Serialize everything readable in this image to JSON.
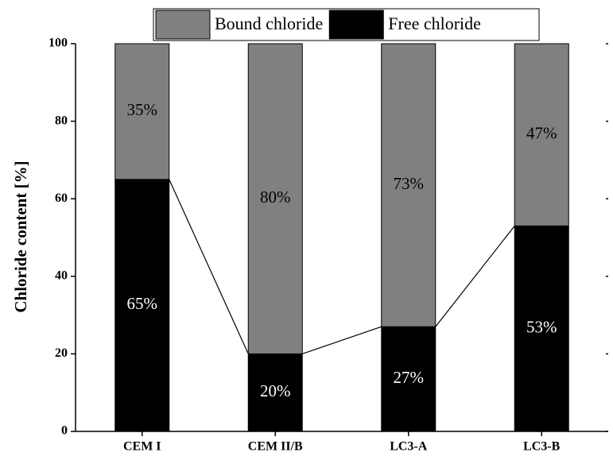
{
  "chart_data": {
    "type": "stacked_bar",
    "y_label": "Chloride content [%]",
    "categories": [
      "CEM I",
      "CEM II/B",
      "LC3-A",
      "LC3-B"
    ],
    "series": [
      {
        "name": "Bound chloride",
        "color": "#808080",
        "values": [
          35,
          80,
          73,
          47
        ],
        "value_labels": [
          "35%",
          "80%",
          "73%",
          "47%"
        ]
      },
      {
        "name": "Free chloride",
        "color": "#000000",
        "values": [
          65,
          20,
          27,
          53
        ],
        "value_labels": [
          "65%",
          "20%",
          "27%",
          "53%"
        ]
      }
    ],
    "ylim": [
      0,
      100
    ],
    "yticks": [
      0,
      20,
      40,
      60,
      80,
      100
    ],
    "legend": "top"
  }
}
